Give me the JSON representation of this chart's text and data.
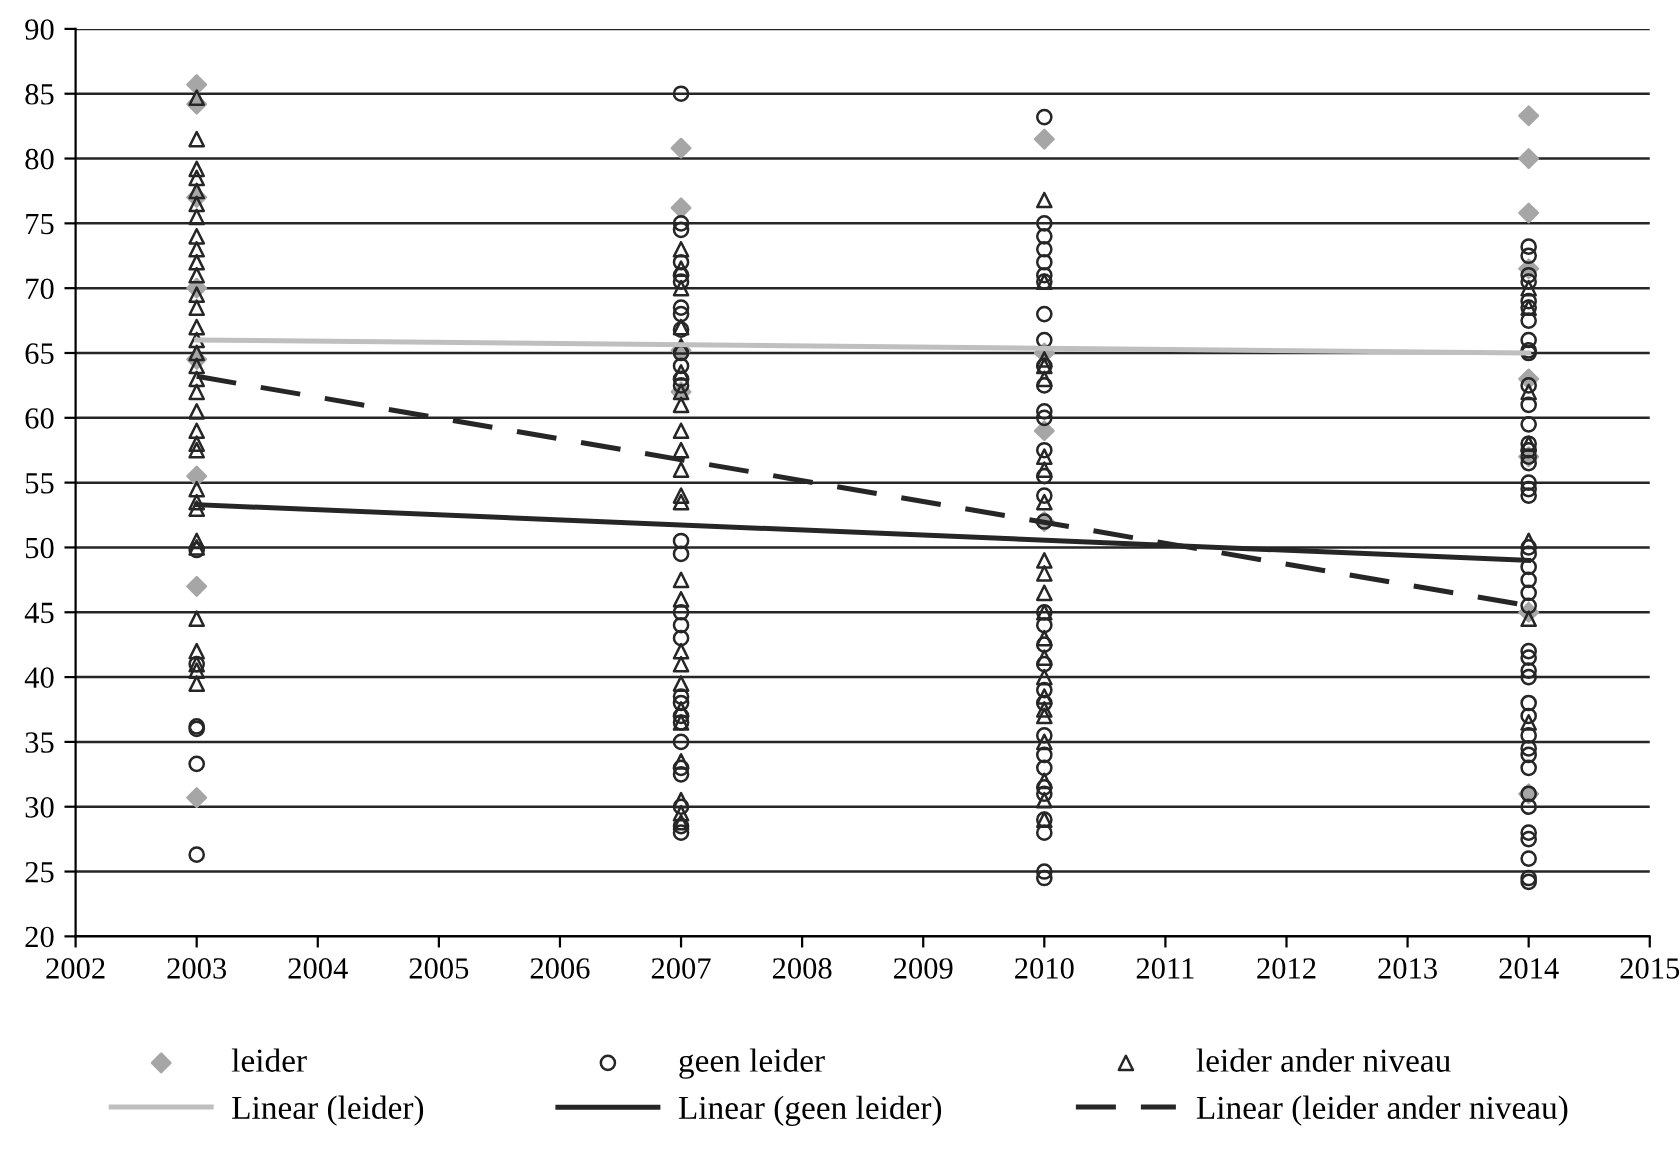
{
  "chart_data": {
    "type": "scatter",
    "xlim": [
      2002,
      2015
    ],
    "xticks": [
      2002,
      2003,
      2004,
      2005,
      2006,
      2007,
      2008,
      2009,
      2010,
      2011,
      2012,
      2013,
      2014,
      2015
    ],
    "ylim": [
      20,
      90
    ],
    "yticks": [
      20,
      25,
      30,
      35,
      40,
      45,
      50,
      55,
      60,
      65,
      70,
      75,
      80,
      85,
      90
    ],
    "grid": "y",
    "legend": "bottom",
    "series": [
      {
        "name": "leider",
        "marker": "diamond",
        "color": "#a6a6a6",
        "x": [
          2003,
          2003,
          2003,
          2003,
          2003,
          2003,
          2003,
          2003,
          2007,
          2007,
          2007,
          2007,
          2010,
          2010,
          2010,
          2010,
          2014,
          2014,
          2014,
          2014,
          2014,
          2014,
          2014,
          2014
        ],
        "values": [
          85.7,
          84.2,
          77,
          70,
          64.5,
          55.5,
          47,
          30.7,
          80.8,
          76.2,
          65.2,
          62,
          81.5,
          65,
          59,
          52,
          83.3,
          80,
          75.8,
          71.5,
          63,
          57,
          45,
          31
        ]
      },
      {
        "name": "geen leider",
        "marker": "circle",
        "color": "#262626",
        "x": [
          2003,
          2003,
          2003,
          2003,
          2003,
          2003,
          2007,
          2007,
          2007,
          2007,
          2007,
          2007,
          2007,
          2007,
          2007,
          2007,
          2007,
          2007,
          2007,
          2007,
          2007,
          2007,
          2007,
          2007,
          2007,
          2007,
          2007,
          2007,
          2007,
          2007,
          2007,
          2007,
          2007,
          2007,
          2010,
          2010,
          2010,
          2010,
          2010,
          2010,
          2010,
          2010,
          2010,
          2010,
          2010,
          2010,
          2010,
          2010,
          2010,
          2010,
          2010,
          2010,
          2010,
          2010,
          2010,
          2010,
          2010,
          2010,
          2010,
          2010,
          2010,
          2010,
          2010,
          2010,
          2010,
          2010,
          2014,
          2014,
          2014,
          2014,
          2014,
          2014,
          2014,
          2014,
          2014,
          2014,
          2014,
          2014,
          2014,
          2014,
          2014,
          2014,
          2014,
          2014,
          2014,
          2014,
          2014,
          2014,
          2014,
          2014,
          2014,
          2014,
          2014,
          2014,
          2014,
          2014,
          2014,
          2014,
          2014,
          2014,
          2014,
          2014,
          2014,
          2014,
          2014,
          2014,
          2014,
          2014,
          2014
        ],
        "values": [
          49.8,
          41,
          36.2,
          36,
          33.3,
          26.3,
          85,
          75,
          74.5,
          72,
          71,
          70.5,
          68.5,
          68,
          66.8,
          65,
          64,
          63,
          62.5,
          50.5,
          49.5,
          45,
          44,
          43,
          38.5,
          38,
          37,
          36.5,
          35,
          33,
          32.5,
          30,
          28.5,
          28,
          83.2,
          75,
          74,
          73,
          72,
          71,
          70.5,
          68,
          66,
          64,
          62.5,
          60.5,
          60,
          57.5,
          55.5,
          54,
          52,
          45,
          44,
          42.5,
          41,
          39,
          38,
          35.5,
          34,
          33,
          31.5,
          31,
          29,
          28,
          25,
          24.5,
          73.2,
          72.5,
          71,
          70.5,
          69,
          68.5,
          67.5,
          66,
          65.2,
          65,
          62.5,
          61,
          59.5,
          58,
          57.5,
          57,
          56.5,
          55,
          54.5,
          54,
          50,
          49.5,
          48.5,
          47.5,
          46.5,
          45.5,
          42,
          41.5,
          40.5,
          40,
          38,
          37,
          35.5,
          34.5,
          34,
          33,
          31,
          30,
          28,
          27.5,
          26,
          24.5,
          24.2
        ]
      },
      {
        "name": "leider ander niveau",
        "marker": "triangle",
        "color": "#262626",
        "x": [
          2003,
          2003,
          2003,
          2003,
          2003,
          2003,
          2003,
          2003,
          2003,
          2003,
          2003,
          2003,
          2003,
          2003,
          2003,
          2003,
          2003,
          2003,
          2003,
          2003,
          2003,
          2003,
          2003,
          2003,
          2003,
          2003,
          2003,
          2003,
          2003,
          2003,
          2003,
          2003,
          2003,
          2007,
          2007,
          2007,
          2007,
          2007,
          2007,
          2007,
          2007,
          2007,
          2007,
          2007,
          2007,
          2007,
          2007,
          2007,
          2007,
          2007,
          2007,
          2007,
          2007,
          2007,
          2007,
          2007,
          2007,
          2010,
          2010,
          2010,
          2010,
          2010,
          2010,
          2010,
          2010,
          2010,
          2010,
          2010,
          2010,
          2010,
          2010,
          2010,
          2010,
          2010,
          2010,
          2010,
          2010,
          2010,
          2010,
          2014,
          2014,
          2014,
          2014,
          2014,
          2014,
          2014
        ],
        "values": [
          84.7,
          81.5,
          79.2,
          78.5,
          77.5,
          76.5,
          75.5,
          74,
          73,
          72,
          71,
          69.5,
          68.5,
          67,
          66,
          65,
          64,
          63,
          62,
          60.5,
          59,
          58,
          57.5,
          54.5,
          53.5,
          53,
          50.5,
          50,
          44.5,
          42,
          41,
          40.5,
          39.5,
          73,
          71.5,
          70,
          67,
          65.5,
          63.5,
          62,
          61,
          59,
          57.5,
          56,
          54,
          53.5,
          47.5,
          46,
          42,
          41,
          39.5,
          37.5,
          36.5,
          33.5,
          30.5,
          29.5,
          28.8,
          76.8,
          70.5,
          64.5,
          64,
          63,
          57,
          56,
          53.5,
          49,
          48,
          46.5,
          45,
          43,
          41.5,
          40,
          38.5,
          37.5,
          37,
          35,
          32,
          30.5,
          29,
          70,
          68.5,
          62,
          58,
          50.5,
          44.5,
          36.5
        ]
      },
      {
        "name": "Linear (leider)",
        "type": "line",
        "marker": "none",
        "line_style": "solid",
        "color": "#bfbfbf",
        "x": [
          2003,
          2014
        ],
        "values": [
          66,
          65
        ]
      },
      {
        "name": "Linear (geen leider)",
        "type": "line",
        "marker": "none",
        "line_style": "solid",
        "color": "#262626",
        "x": [
          2003,
          2014
        ],
        "values": [
          53.3,
          49
        ]
      },
      {
        "name": "Linear (leider ander niveau)",
        "type": "line",
        "marker": "none",
        "line_style": "dashed",
        "color": "#262626",
        "x": [
          2003,
          2014
        ],
        "values": [
          63.2,
          45.5
        ]
      }
    ]
  }
}
